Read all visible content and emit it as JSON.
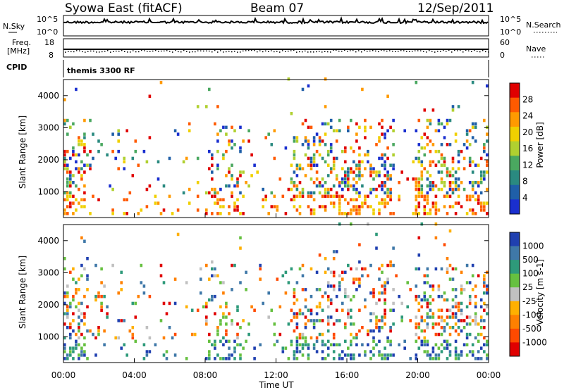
{
  "header": {
    "site": "Syowa East (fitACF)",
    "beam": "Beam 07",
    "date": "12/Sep/2011"
  },
  "aux_panels": {
    "left_top_label": "N.Sky",
    "left_top_ticks": [
      "10^5",
      "10^0"
    ],
    "right_top_label": "N.Search",
    "right_top_ticks": [
      "10^5",
      "10^0"
    ],
    "left_mid_label_1": "Freq.",
    "left_mid_label_2": "[MHz]",
    "left_mid_ticks": [
      "18",
      "8"
    ],
    "right_mid_label": "Nave",
    "right_mid_ticks": [
      "60",
      "0"
    ],
    "cpid_label": "CPID",
    "cpid_text": "themis 3300 RF"
  },
  "chart_data": [
    {
      "type": "heatmap",
      "title": "",
      "xlabel": "",
      "ylabel": "Slant Range [km]",
      "xlim": [
        "00:00",
        "24:00"
      ],
      "ylim": [
        200,
        4500
      ],
      "y_ticks": [
        "4000",
        "3000",
        "2000",
        "1000"
      ],
      "colorbar": {
        "label": "Power [dB]",
        "ticks": [
          "28",
          "24",
          "20",
          "16",
          "12",
          "8",
          "4"
        ],
        "colors": [
          "#e00000",
          "#ff5a00",
          "#ff9a00",
          "#f0d000",
          "#b0d030",
          "#4aa860",
          "#2a8a80",
          "#1f5fa8",
          "#1a2fcf"
        ]
      }
    },
    {
      "type": "heatmap",
      "title": "",
      "xlabel": "Time UT",
      "ylabel": "Slant Range [km]",
      "xlim": [
        "00:00",
        "24:00"
      ],
      "ylim": [
        200,
        4500
      ],
      "x_ticks": [
        "00:00",
        "04:00",
        "08:00",
        "12:00",
        "16:00",
        "20:00",
        "00:00"
      ],
      "y_ticks": [
        "4000",
        "3000",
        "2000",
        "1000"
      ],
      "colorbar": {
        "label": "Velocity [m s-1]",
        "ticks": [
          "1000",
          "500",
          "100",
          "25",
          "-25",
          "-100",
          "-500",
          "-1000"
        ],
        "colors": [
          "#2040b0",
          "#3f78a8",
          "#2e9a7a",
          "#66c040",
          "#c0c0c0",
          "#ffb000",
          "#ff8000",
          "#ff4a00",
          "#e00000"
        ]
      }
    }
  ]
}
